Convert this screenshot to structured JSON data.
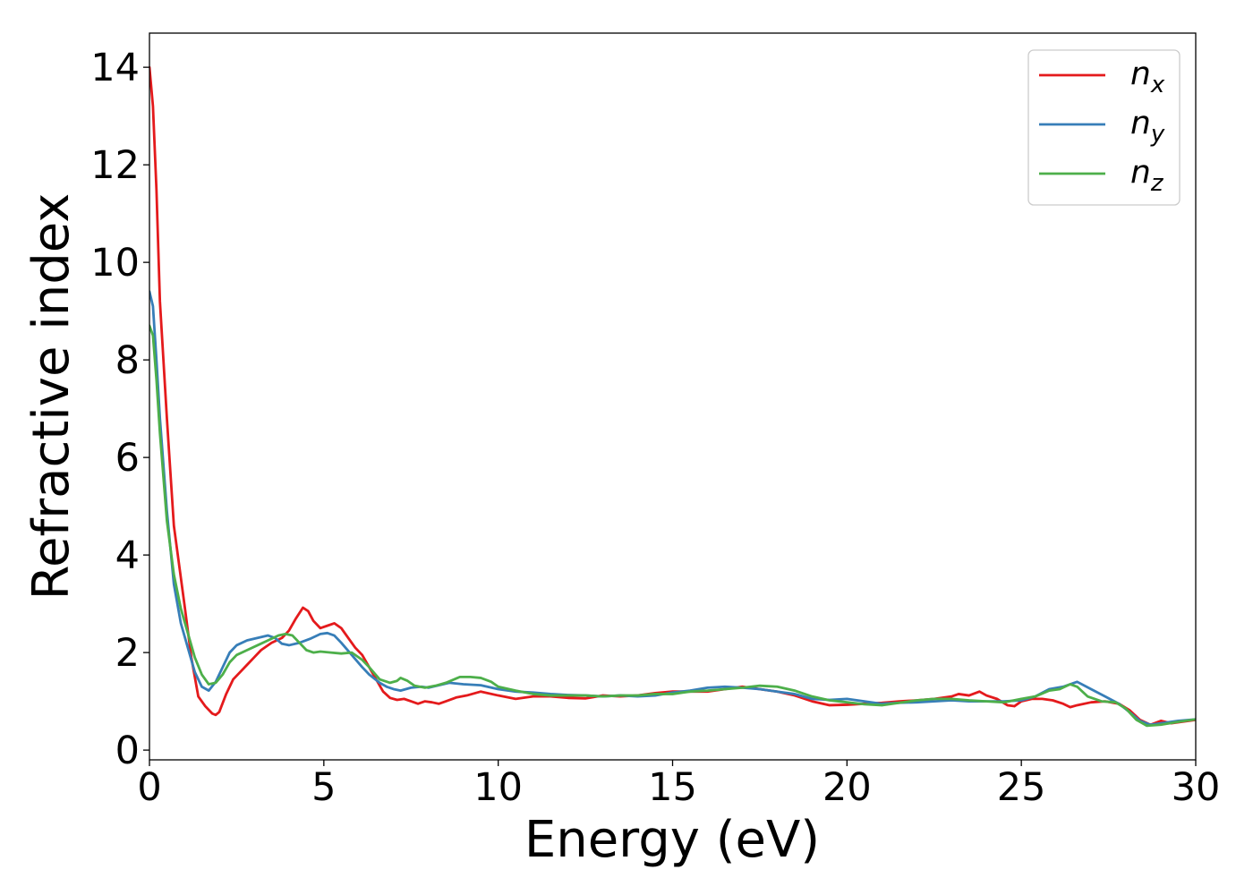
{
  "chart_data": {
    "type": "line",
    "xlabel": "Energy (eV)",
    "ylabel": "Refractive index",
    "xlim": [
      0,
      30
    ],
    "ylim": [
      -0.2,
      14.7
    ],
    "xticks": [
      0,
      5,
      10,
      15,
      20,
      25,
      30
    ],
    "yticks": [
      0,
      2,
      4,
      6,
      8,
      10,
      12,
      14
    ],
    "grid": false,
    "legend_position": "top-right",
    "series": [
      {
        "name": "n_x",
        "label_base": "n",
        "label_sub": "x",
        "color": "#e41a1c",
        "points": [
          [
            0.0,
            14.0
          ],
          [
            0.1,
            13.2
          ],
          [
            0.2,
            11.5
          ],
          [
            0.3,
            9.2
          ],
          [
            0.5,
            6.8
          ],
          [
            0.7,
            4.6
          ],
          [
            1.0,
            3.0
          ],
          [
            1.2,
            1.9
          ],
          [
            1.4,
            1.1
          ],
          [
            1.6,
            0.9
          ],
          [
            1.8,
            0.75
          ],
          [
            1.9,
            0.72
          ],
          [
            2.0,
            0.78
          ],
          [
            2.2,
            1.15
          ],
          [
            2.4,
            1.45
          ],
          [
            2.6,
            1.6
          ],
          [
            2.8,
            1.75
          ],
          [
            3.0,
            1.9
          ],
          [
            3.2,
            2.05
          ],
          [
            3.5,
            2.2
          ],
          [
            3.8,
            2.3
          ],
          [
            4.0,
            2.45
          ],
          [
            4.2,
            2.7
          ],
          [
            4.4,
            2.92
          ],
          [
            4.55,
            2.85
          ],
          [
            4.7,
            2.65
          ],
          [
            4.9,
            2.5
          ],
          [
            5.1,
            2.55
          ],
          [
            5.3,
            2.6
          ],
          [
            5.5,
            2.5
          ],
          [
            5.7,
            2.3
          ],
          [
            5.9,
            2.1
          ],
          [
            6.1,
            1.95
          ],
          [
            6.3,
            1.7
          ],
          [
            6.5,
            1.45
          ],
          [
            6.7,
            1.2
          ],
          [
            6.9,
            1.07
          ],
          [
            7.1,
            1.03
          ],
          [
            7.3,
            1.05
          ],
          [
            7.5,
            1.0
          ],
          [
            7.7,
            0.95
          ],
          [
            7.9,
            1.0
          ],
          [
            8.1,
            0.98
          ],
          [
            8.3,
            0.95
          ],
          [
            8.5,
            1.0
          ],
          [
            8.8,
            1.08
          ],
          [
            9.1,
            1.12
          ],
          [
            9.5,
            1.2
          ],
          [
            10.0,
            1.12
          ],
          [
            10.5,
            1.05
          ],
          [
            11.0,
            1.1
          ],
          [
            11.5,
            1.1
          ],
          [
            12.0,
            1.07
          ],
          [
            12.5,
            1.06
          ],
          [
            13.0,
            1.12
          ],
          [
            13.5,
            1.1
          ],
          [
            14.0,
            1.12
          ],
          [
            14.5,
            1.17
          ],
          [
            15.0,
            1.2
          ],
          [
            15.5,
            1.2
          ],
          [
            16.0,
            1.2
          ],
          [
            16.5,
            1.25
          ],
          [
            17.0,
            1.3
          ],
          [
            17.5,
            1.25
          ],
          [
            18.0,
            1.2
          ],
          [
            18.5,
            1.12
          ],
          [
            19.0,
            1.0
          ],
          [
            19.5,
            0.92
          ],
          [
            20.0,
            0.93
          ],
          [
            20.5,
            0.95
          ],
          [
            21.0,
            0.97
          ],
          [
            21.5,
            1.0
          ],
          [
            22.0,
            1.02
          ],
          [
            22.5,
            1.05
          ],
          [
            23.0,
            1.1
          ],
          [
            23.2,
            1.15
          ],
          [
            23.5,
            1.12
          ],
          [
            23.8,
            1.2
          ],
          [
            24.0,
            1.12
          ],
          [
            24.3,
            1.05
          ],
          [
            24.6,
            0.92
          ],
          [
            24.8,
            0.9
          ],
          [
            25.0,
            1.0
          ],
          [
            25.3,
            1.05
          ],
          [
            25.6,
            1.05
          ],
          [
            25.9,
            1.02
          ],
          [
            26.2,
            0.95
          ],
          [
            26.4,
            0.88
          ],
          [
            26.6,
            0.92
          ],
          [
            27.0,
            0.98
          ],
          [
            27.4,
            1.0
          ],
          [
            27.8,
            0.95
          ],
          [
            28.1,
            0.82
          ],
          [
            28.4,
            0.62
          ],
          [
            28.7,
            0.52
          ],
          [
            29.0,
            0.6
          ],
          [
            29.3,
            0.55
          ],
          [
            29.6,
            0.58
          ],
          [
            30.0,
            0.62
          ]
        ]
      },
      {
        "name": "n_y",
        "label_base": "n",
        "label_sub": "y",
        "color": "#377eb8",
        "points": [
          [
            0.0,
            9.4
          ],
          [
            0.1,
            9.1
          ],
          [
            0.2,
            8.0
          ],
          [
            0.3,
            6.8
          ],
          [
            0.5,
            4.9
          ],
          [
            0.7,
            3.4
          ],
          [
            0.9,
            2.6
          ],
          [
            1.1,
            2.1
          ],
          [
            1.3,
            1.6
          ],
          [
            1.5,
            1.3
          ],
          [
            1.7,
            1.22
          ],
          [
            1.9,
            1.4
          ],
          [
            2.1,
            1.7
          ],
          [
            2.3,
            2.0
          ],
          [
            2.5,
            2.15
          ],
          [
            2.8,
            2.25
          ],
          [
            3.1,
            2.3
          ],
          [
            3.4,
            2.35
          ],
          [
            3.6,
            2.3
          ],
          [
            3.8,
            2.18
          ],
          [
            4.0,
            2.15
          ],
          [
            4.3,
            2.2
          ],
          [
            4.6,
            2.28
          ],
          [
            4.9,
            2.38
          ],
          [
            5.1,
            2.4
          ],
          [
            5.3,
            2.35
          ],
          [
            5.5,
            2.2
          ],
          [
            5.8,
            1.95
          ],
          [
            6.1,
            1.7
          ],
          [
            6.3,
            1.55
          ],
          [
            6.6,
            1.38
          ],
          [
            6.8,
            1.3
          ],
          [
            7.0,
            1.25
          ],
          [
            7.2,
            1.22
          ],
          [
            7.5,
            1.28
          ],
          [
            7.8,
            1.3
          ],
          [
            8.0,
            1.28
          ],
          [
            8.3,
            1.33
          ],
          [
            8.6,
            1.38
          ],
          [
            9.0,
            1.35
          ],
          [
            9.5,
            1.33
          ],
          [
            10.0,
            1.25
          ],
          [
            10.5,
            1.2
          ],
          [
            11.0,
            1.18
          ],
          [
            11.5,
            1.15
          ],
          [
            12.0,
            1.13
          ],
          [
            12.5,
            1.12
          ],
          [
            13.0,
            1.1
          ],
          [
            13.5,
            1.12
          ],
          [
            14.0,
            1.1
          ],
          [
            14.5,
            1.12
          ],
          [
            15.0,
            1.18
          ],
          [
            15.5,
            1.22
          ],
          [
            16.0,
            1.28
          ],
          [
            16.5,
            1.3
          ],
          [
            17.0,
            1.28
          ],
          [
            17.5,
            1.25
          ],
          [
            18.0,
            1.2
          ],
          [
            18.5,
            1.15
          ],
          [
            19.0,
            1.05
          ],
          [
            19.5,
            1.03
          ],
          [
            20.0,
            1.05
          ],
          [
            20.5,
            1.0
          ],
          [
            21.0,
            0.95
          ],
          [
            21.5,
            0.97
          ],
          [
            22.0,
            0.98
          ],
          [
            22.5,
            1.0
          ],
          [
            23.0,
            1.02
          ],
          [
            23.5,
            1.0
          ],
          [
            24.0,
            1.0
          ],
          [
            24.5,
            1.0
          ],
          [
            25.0,
            1.02
          ],
          [
            25.4,
            1.1
          ],
          [
            25.8,
            1.25
          ],
          [
            26.2,
            1.3
          ],
          [
            26.6,
            1.4
          ],
          [
            27.0,
            1.25
          ],
          [
            27.4,
            1.1
          ],
          [
            27.8,
            0.95
          ],
          [
            28.1,
            0.78
          ],
          [
            28.4,
            0.6
          ],
          [
            28.7,
            0.52
          ],
          [
            29.0,
            0.55
          ],
          [
            29.5,
            0.6
          ],
          [
            30.0,
            0.63
          ]
        ]
      },
      {
        "name": "n_z",
        "label_base": "n",
        "label_sub": "z",
        "color": "#4daf4a",
        "points": [
          [
            0.0,
            8.7
          ],
          [
            0.1,
            8.5
          ],
          [
            0.2,
            7.6
          ],
          [
            0.3,
            6.5
          ],
          [
            0.5,
            4.7
          ],
          [
            0.7,
            3.6
          ],
          [
            0.9,
            2.9
          ],
          [
            1.1,
            2.4
          ],
          [
            1.3,
            1.9
          ],
          [
            1.5,
            1.55
          ],
          [
            1.7,
            1.35
          ],
          [
            1.9,
            1.38
          ],
          [
            2.1,
            1.55
          ],
          [
            2.3,
            1.8
          ],
          [
            2.5,
            1.95
          ],
          [
            2.8,
            2.05
          ],
          [
            3.1,
            2.15
          ],
          [
            3.4,
            2.25
          ],
          [
            3.7,
            2.35
          ],
          [
            3.9,
            2.38
          ],
          [
            4.1,
            2.35
          ],
          [
            4.3,
            2.2
          ],
          [
            4.5,
            2.05
          ],
          [
            4.7,
            2.0
          ],
          [
            4.9,
            2.02
          ],
          [
            5.2,
            2.0
          ],
          [
            5.5,
            1.98
          ],
          [
            5.8,
            2.0
          ],
          [
            6.1,
            1.85
          ],
          [
            6.3,
            1.7
          ],
          [
            6.6,
            1.45
          ],
          [
            6.9,
            1.38
          ],
          [
            7.1,
            1.42
          ],
          [
            7.2,
            1.48
          ],
          [
            7.4,
            1.42
          ],
          [
            7.6,
            1.32
          ],
          [
            7.9,
            1.28
          ],
          [
            8.2,
            1.32
          ],
          [
            8.5,
            1.38
          ],
          [
            8.9,
            1.5
          ],
          [
            9.2,
            1.5
          ],
          [
            9.5,
            1.48
          ],
          [
            9.8,
            1.4
          ],
          [
            10.0,
            1.3
          ],
          [
            10.5,
            1.22
          ],
          [
            11.0,
            1.15
          ],
          [
            11.5,
            1.12
          ],
          [
            12.0,
            1.12
          ],
          [
            12.5,
            1.12
          ],
          [
            13.0,
            1.1
          ],
          [
            13.5,
            1.12
          ],
          [
            14.0,
            1.12
          ],
          [
            14.5,
            1.15
          ],
          [
            15.0,
            1.15
          ],
          [
            15.5,
            1.2
          ],
          [
            16.0,
            1.22
          ],
          [
            16.5,
            1.25
          ],
          [
            17.0,
            1.28
          ],
          [
            17.5,
            1.32
          ],
          [
            18.0,
            1.3
          ],
          [
            18.5,
            1.22
          ],
          [
            19.0,
            1.1
          ],
          [
            19.5,
            1.02
          ],
          [
            20.0,
            0.98
          ],
          [
            20.5,
            0.94
          ],
          [
            21.0,
            0.92
          ],
          [
            21.5,
            0.97
          ],
          [
            22.0,
            1.02
          ],
          [
            22.5,
            1.05
          ],
          [
            23.0,
            1.05
          ],
          [
            23.5,
            1.02
          ],
          [
            24.0,
            1.0
          ],
          [
            24.5,
            0.98
          ],
          [
            25.0,
            1.05
          ],
          [
            25.4,
            1.1
          ],
          [
            25.8,
            1.22
          ],
          [
            26.1,
            1.25
          ],
          [
            26.4,
            1.35
          ],
          [
            26.6,
            1.3
          ],
          [
            26.9,
            1.1
          ],
          [
            27.3,
            1.0
          ],
          [
            27.7,
            0.98
          ],
          [
            28.0,
            0.85
          ],
          [
            28.3,
            0.62
          ],
          [
            28.6,
            0.5
          ],
          [
            29.0,
            0.52
          ],
          [
            29.5,
            0.58
          ],
          [
            30.0,
            0.63
          ]
        ]
      }
    ]
  }
}
